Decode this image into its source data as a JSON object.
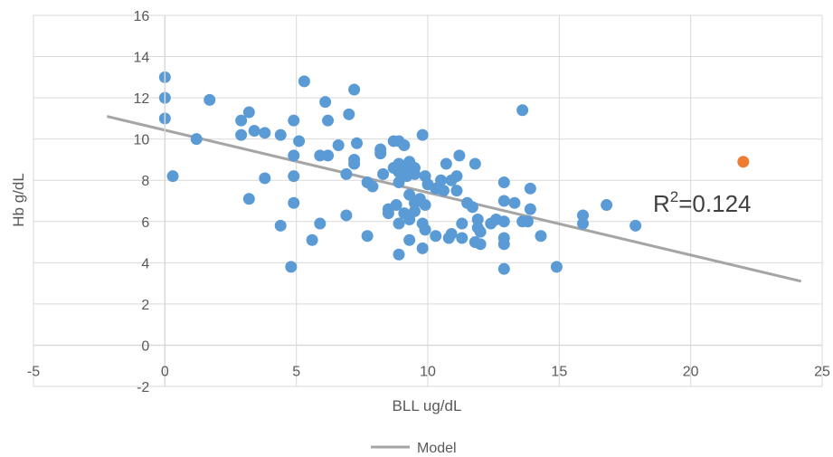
{
  "chart_data": {
    "type": "scatter",
    "title": "",
    "xlabel": "BLL ug/dL",
    "ylabel": "Hb g/dL",
    "xlim": [
      -5,
      25
    ],
    "ylim": [
      -2,
      16
    ],
    "x_ticks": [
      -5,
      0,
      5,
      10,
      15,
      20,
      25
    ],
    "y_ticks": [
      -2,
      0,
      2,
      4,
      6,
      8,
      10,
      12,
      14,
      16
    ],
    "grid": true,
    "legend_position": "bottom",
    "annotation": {
      "base": "R",
      "sup": "2",
      "rest": "=0.124"
    },
    "colors": {
      "points": "#5b9bd5",
      "outlier": "#ed7d31",
      "trendline": "#a5a5a5",
      "grid": "#d9d9d9",
      "text": "#595959"
    },
    "series": [
      {
        "points": [
          [
            0,
            13.0
          ],
          [
            0,
            12.0
          ],
          [
            0,
            11.0
          ],
          [
            0.3,
            8.2
          ],
          [
            1.2,
            10.0
          ],
          [
            1.7,
            11.9
          ],
          [
            2.9,
            10.9
          ],
          [
            2.9,
            10.2
          ],
          [
            3.2,
            11.3
          ],
          [
            3.2,
            7.1
          ],
          [
            3.4,
            10.4
          ],
          [
            3.8,
            10.3
          ],
          [
            3.8,
            8.1
          ],
          [
            4.4,
            10.2
          ],
          [
            4.4,
            5.8
          ],
          [
            4.8,
            3.8
          ],
          [
            4.9,
            10.9
          ],
          [
            4.9,
            9.2
          ],
          [
            4.9,
            8.2
          ],
          [
            4.9,
            6.9
          ],
          [
            5.1,
            9.9
          ],
          [
            5.3,
            12.8
          ],
          [
            5.6,
            5.1
          ],
          [
            5.9,
            9.2
          ],
          [
            5.9,
            5.9
          ],
          [
            6.1,
            11.8
          ],
          [
            6.2,
            10.9
          ],
          [
            6.2,
            9.2
          ],
          [
            6.6,
            9.7
          ],
          [
            6.9,
            8.3
          ],
          [
            6.9,
            6.3
          ],
          [
            7.0,
            11.2
          ],
          [
            7.2,
            12.4
          ],
          [
            7.2,
            9.0
          ],
          [
            7.2,
            8.8
          ],
          [
            7.3,
            9.8
          ],
          [
            7.7,
            7.9
          ],
          [
            7.7,
            5.3
          ],
          [
            7.9,
            7.7
          ],
          [
            8.2,
            9.5
          ],
          [
            8.2,
            9.3
          ],
          [
            8.3,
            8.3
          ],
          [
            8.5,
            6.6
          ],
          [
            8.5,
            6.4
          ],
          [
            8.7,
            8.6
          ],
          [
            8.7,
            9.9
          ],
          [
            8.8,
            6.8
          ],
          [
            8.9,
            9.9
          ],
          [
            8.9,
            8.8
          ],
          [
            8.9,
            8.4
          ],
          [
            8.9,
            7.9
          ],
          [
            8.9,
            5.9
          ],
          [
            8.9,
            4.4
          ],
          [
            9.1,
            9.7
          ],
          [
            9.1,
            8.5
          ],
          [
            9.1,
            6.4
          ],
          [
            9.2,
            8.2
          ],
          [
            9.3,
            8.9
          ],
          [
            9.3,
            7.3
          ],
          [
            9.3,
            6.1
          ],
          [
            9.3,
            5.1
          ],
          [
            9.5,
            8.6
          ],
          [
            9.5,
            8.3
          ],
          [
            9.5,
            6.9
          ],
          [
            9.5,
            6.5
          ],
          [
            9.7,
            7.1
          ],
          [
            9.8,
            10.2
          ],
          [
            9.8,
            5.9
          ],
          [
            9.8,
            4.7
          ],
          [
            9.9,
            8.2
          ],
          [
            9.9,
            6.8
          ],
          [
            9.9,
            5.6
          ],
          [
            10.0,
            7.8
          ],
          [
            10.3,
            7.6
          ],
          [
            10.3,
            5.3
          ],
          [
            10.5,
            8.0
          ],
          [
            10.6,
            7.5
          ],
          [
            10.7,
            8.8
          ],
          [
            10.8,
            5.2
          ],
          [
            10.9,
            8.0
          ],
          [
            10.9,
            5.4
          ],
          [
            11.1,
            7.5
          ],
          [
            11.1,
            8.2
          ],
          [
            11.2,
            9.2
          ],
          [
            11.3,
            5.9
          ],
          [
            11.3,
            5.2
          ],
          [
            11.5,
            6.9
          ],
          [
            11.7,
            6.7
          ],
          [
            11.8,
            8.8
          ],
          [
            11.8,
            5.0
          ],
          [
            11.9,
            6.1
          ],
          [
            11.9,
            5.7
          ],
          [
            12.0,
            4.9
          ],
          [
            12.0,
            5.5
          ],
          [
            12.4,
            5.9
          ],
          [
            12.6,
            6.1
          ],
          [
            12.9,
            7.9
          ],
          [
            12.9,
            7.0
          ],
          [
            12.9,
            6.0
          ],
          [
            12.9,
            5.2
          ],
          [
            12.9,
            4.9
          ],
          [
            12.9,
            3.7
          ],
          [
            13.3,
            6.9
          ],
          [
            13.6,
            11.4
          ],
          [
            13.6,
            6.0
          ],
          [
            13.8,
            6.0
          ],
          [
            13.9,
            7.6
          ],
          [
            13.9,
            6.6
          ],
          [
            14.3,
            5.3
          ],
          [
            14.9,
            3.8
          ],
          [
            15.9,
            6.3
          ],
          [
            15.9,
            5.9
          ],
          [
            16.8,
            6.8
          ],
          [
            17.9,
            5.8
          ]
        ]
      },
      {
        "points": [
          [
            22,
            8.9
          ]
        ]
      }
    ],
    "trendline": {
      "name": "Model",
      "x": [
        -2.2,
        24.2
      ],
      "y": [
        11.1,
        3.1
      ]
    }
  }
}
